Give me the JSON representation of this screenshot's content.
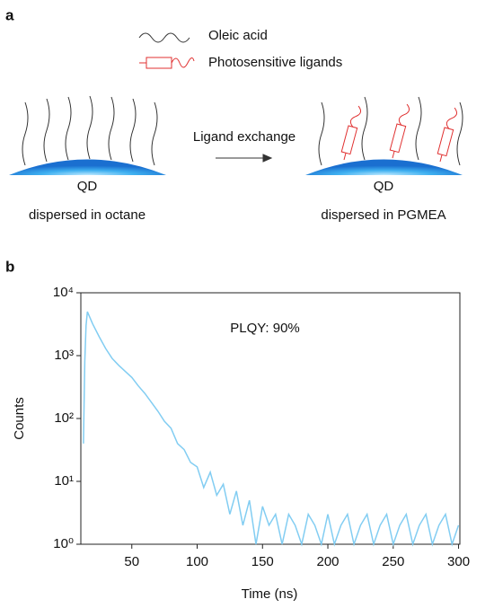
{
  "panel_a": {
    "label": "a",
    "legend": [
      "Oleic acid",
      "Photosensitive ligands"
    ],
    "arrow_label": "Ligand exchange",
    "left": {
      "core": "QD",
      "caption": "dispersed in octane"
    },
    "right": {
      "core": "QD",
      "caption": "dispersed in PGMEA"
    }
  },
  "chart_data": {
    "type": "line",
    "panel_label": "b",
    "annotation": "PLQY: 90%",
    "x_label": "Time (ns)",
    "y_label": "Counts",
    "yscale": "log",
    "color": "#82cdf2",
    "x": [
      13,
      14,
      15,
      16,
      20,
      25,
      30,
      35,
      40,
      45,
      50,
      55,
      60,
      65,
      70,
      75,
      80,
      85,
      90,
      95,
      100,
      105,
      110,
      115,
      120,
      125,
      130,
      135,
      140,
      145,
      150,
      155,
      160,
      165,
      170,
      175,
      180,
      185,
      190,
      195,
      200,
      205,
      210,
      215,
      220,
      225,
      230,
      235,
      240,
      245,
      250,
      255,
      260,
      265,
      270,
      275,
      280,
      285,
      290,
      295,
      300
    ],
    "values": [
      40,
      800,
      3000,
      5000,
      3200,
      2000,
      1300,
      900,
      700,
      560,
      450,
      330,
      250,
      180,
      130,
      90,
      70,
      40,
      32,
      20,
      17,
      8,
      14,
      6,
      9,
      3,
      7,
      2,
      5,
      1,
      4,
      2,
      3,
      1,
      3,
      2,
      1,
      3,
      2,
      1,
      3,
      1,
      2,
      3,
      1,
      2,
      3,
      1,
      2,
      3,
      1,
      2,
      3,
      1,
      2,
      3,
      1,
      2,
      3,
      1,
      2
    ],
    "xlim": [
      11,
      301
    ],
    "ylim": [
      1,
      10000
    ],
    "xticks": [
      50,
      100,
      150,
      200,
      250,
      300
    ],
    "yticks": [
      {
        "value": 1,
        "label": "10⁰"
      },
      {
        "value": 10,
        "label": "10¹"
      },
      {
        "value": 100,
        "label": "10²"
      },
      {
        "value": 1000,
        "label": "10³"
      },
      {
        "value": 10000,
        "label": "10⁴"
      }
    ]
  }
}
